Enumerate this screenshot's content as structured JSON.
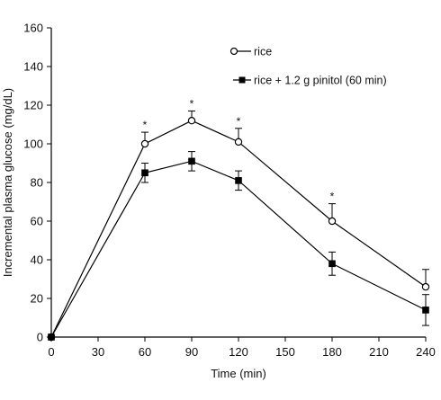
{
  "chart_data": {
    "type": "line",
    "title": "",
    "xlabel": "Time (min)",
    "ylabel": "Incremental plasma glucose (mg/dL)",
    "xlim": [
      0,
      240
    ],
    "ylim": [
      0,
      160
    ],
    "xticks": [
      0,
      30,
      60,
      90,
      120,
      150,
      180,
      210,
      240
    ],
    "yticks": [
      0,
      20,
      40,
      60,
      80,
      100,
      120,
      140,
      160
    ],
    "grid": false,
    "legend_position": "top-right",
    "x": [
      0,
      60,
      90,
      120,
      180,
      240
    ],
    "series": [
      {
        "name": "rice",
        "marker": "open-circle",
        "color": "#000000",
        "values": [
          0,
          100,
          112,
          101,
          60,
          26
        ],
        "error_upper": [
          0,
          6,
          5,
          7,
          9,
          9
        ]
      },
      {
        "name": "rice + 1.2 g pinitol (60 min)",
        "marker": "filled-square",
        "color": "#000000",
        "values": [
          0,
          85,
          91,
          81,
          38,
          14
        ],
        "error_upper": [
          0,
          5,
          5,
          5,
          6,
          8
        ],
        "error_lower": [
          0,
          5,
          5,
          5,
          6,
          8
        ]
      }
    ],
    "significance_markers": [
      {
        "x": 60,
        "label": "*"
      },
      {
        "x": 90,
        "label": "*"
      },
      {
        "x": 120,
        "label": "*"
      },
      {
        "x": 180,
        "label": "*"
      }
    ]
  }
}
